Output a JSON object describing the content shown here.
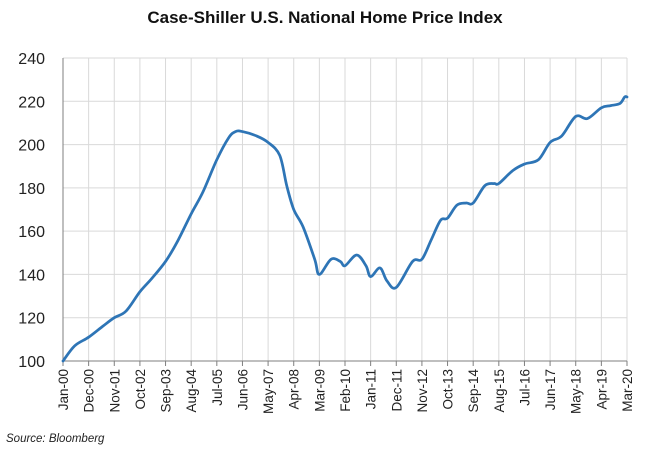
{
  "title": "Case-Shiller U.S. National Home Price Index",
  "source": "Source: Bloomberg",
  "colors": {
    "line": "#2e75b6",
    "grid": "#d9d9d9",
    "axis": "#7f7f7f"
  },
  "chart_data": {
    "type": "line",
    "title": "Case-Shiller U.S. National Home Price Index",
    "xlabel": "",
    "ylabel": "",
    "ylim": [
      100,
      240
    ],
    "yticks": [
      100,
      120,
      140,
      160,
      180,
      200,
      220,
      240
    ],
    "xlim": [
      0,
      242
    ],
    "xtick_labels": [
      "Jan-00",
      "Dec-00",
      "Nov-01",
      "Oct-02",
      "Sep-03",
      "Aug-04",
      "Jul-05",
      "Jun-06",
      "May-07",
      "Apr-08",
      "Mar-09",
      "Feb-10",
      "Jan-11",
      "Dec-11",
      "Nov-12",
      "Oct-13",
      "Sep-14",
      "Aug-15",
      "Jul-16",
      "Jun-17",
      "May-18",
      "Apr-19",
      "Mar-20"
    ],
    "grid": true,
    "series": [
      {
        "x": [
          "Jan-00",
          "Jun-00",
          "Dec-00",
          "Jun-01",
          "Nov-01",
          "Apr-02",
          "Oct-02",
          "Mar-03",
          "Sep-03",
          "Feb-04",
          "Aug-04",
          "Jan-05",
          "Jul-05",
          "Dec-05",
          "Mar-06",
          "Jun-06",
          "Dec-06",
          "May-07",
          "Oct-07",
          "Jan-08",
          "Apr-08",
          "Aug-08",
          "Jan-09",
          "Mar-09",
          "Aug-09",
          "Dec-09",
          "Feb-10",
          "Jul-10",
          "Nov-10",
          "Jan-11",
          "May-11",
          "Aug-11",
          "Dec-11",
          "Jul-12",
          "Nov-12",
          "Mar-13",
          "Jul-13",
          "Oct-13",
          "Feb-14",
          "Jun-14",
          "Sep-14",
          "Feb-15",
          "Jun-15",
          "Aug-15",
          "Feb-16",
          "Jul-16",
          "Jan-17",
          "Jun-17",
          "Nov-17",
          "May-18",
          "Oct-18",
          "Apr-19",
          "Aug-19",
          "Dec-19",
          "Feb-20",
          "Mar-20"
        ],
        "values": [
          100,
          107,
          111,
          116,
          120,
          123,
          132,
          138,
          146,
          155,
          168,
          178,
          193,
          203,
          206,
          206,
          204,
          201,
          195,
          181,
          170,
          162,
          147,
          140,
          147,
          146,
          144,
          149,
          144,
          139,
          143,
          137,
          134,
          146,
          147,
          156,
          165,
          166,
          172,
          173,
          173,
          181,
          182,
          182,
          188,
          191,
          193,
          201,
          204,
          213,
          212,
          217,
          218,
          219,
          222,
          222
        ]
      }
    ]
  }
}
